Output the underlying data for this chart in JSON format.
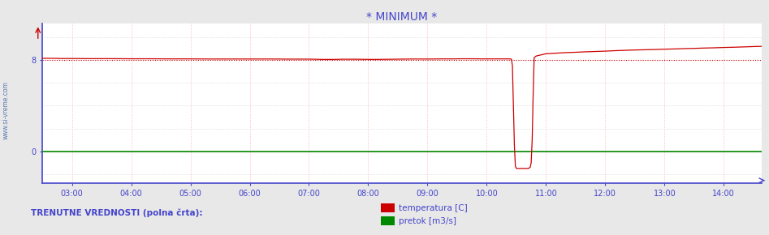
{
  "title": "* MINIMUM *",
  "title_color": "#4444cc",
  "title_fontsize": 10,
  "fig_bg_color": "#e8e8e8",
  "plot_bg_color": "#ffffff",
  "xlim_minutes": [
    150,
    878
  ],
  "ylim": [
    -2.8,
    11.2
  ],
  "yticks": [
    0,
    8
  ],
  "xtick_labels": [
    "03:00",
    "04:00",
    "05:00",
    "06:00",
    "07:00",
    "08:00",
    "09:00",
    "10:00",
    "11:00",
    "12:00",
    "13:00",
    "14:00"
  ],
  "xtick_positions": [
    180,
    240,
    300,
    360,
    420,
    480,
    540,
    600,
    660,
    720,
    780,
    840
  ],
  "axis_color": "#4444cc",
  "grid_color_v": "#ffaaaa",
  "grid_color_h": "#ccccdd",
  "temp_color": "#cc0000",
  "flow_color": "#008800",
  "min_line_color": "#cc0000",
  "min_line_y": 8.0,
  "watermark": "www.si-vreme.com",
  "watermark_color": "#4466aa",
  "legend_text1": "temperatura [C]",
  "legend_text2": "pretok [m3/s]",
  "legend_label": "TRENUTNE VREDNOSTI (polna črta):",
  "temp_data": [
    [
      150,
      8.15
    ],
    [
      160,
      8.15
    ],
    [
      170,
      8.13
    ],
    [
      180,
      8.13
    ],
    [
      200,
      8.12
    ],
    [
      220,
      8.12
    ],
    [
      240,
      8.11
    ],
    [
      260,
      8.11
    ],
    [
      280,
      8.1
    ],
    [
      300,
      8.1
    ],
    [
      320,
      8.09
    ],
    [
      340,
      8.09
    ],
    [
      360,
      8.09
    ],
    [
      380,
      8.09
    ],
    [
      400,
      8.08
    ],
    [
      420,
      8.08
    ],
    [
      435,
      8.05
    ],
    [
      445,
      8.05
    ],
    [
      455,
      8.07
    ],
    [
      465,
      8.07
    ],
    [
      475,
      8.06
    ],
    [
      485,
      8.05
    ],
    [
      495,
      8.06
    ],
    [
      505,
      8.07
    ],
    [
      515,
      8.08
    ],
    [
      525,
      8.09
    ],
    [
      535,
      8.09
    ],
    [
      545,
      8.09
    ],
    [
      555,
      8.1
    ],
    [
      565,
      8.1
    ],
    [
      575,
      8.11
    ],
    [
      585,
      8.11
    ],
    [
      595,
      8.1
    ],
    [
      605,
      8.1
    ],
    [
      615,
      8.1
    ],
    [
      620,
      8.1
    ],
    [
      623,
      8.1
    ],
    [
      625,
      8.08
    ],
    [
      626,
      7.5
    ],
    [
      627,
      4.0
    ],
    [
      628,
      0.5
    ],
    [
      629,
      -1.3
    ],
    [
      630,
      -1.5
    ],
    [
      631,
      -1.5
    ],
    [
      632,
      -1.5
    ],
    [
      635,
      -1.5
    ],
    [
      638,
      -1.5
    ],
    [
      640,
      -1.5
    ],
    [
      642,
      -1.5
    ],
    [
      644,
      -1.4
    ],
    [
      645,
      -1.0
    ],
    [
      646,
      1.0
    ],
    [
      647,
      5.0
    ],
    [
      648,
      8.2
    ],
    [
      650,
      8.35
    ],
    [
      655,
      8.45
    ],
    [
      660,
      8.55
    ],
    [
      670,
      8.6
    ],
    [
      680,
      8.65
    ],
    [
      690,
      8.68
    ],
    [
      700,
      8.72
    ],
    [
      710,
      8.75
    ],
    [
      720,
      8.78
    ],
    [
      730,
      8.82
    ],
    [
      740,
      8.85
    ],
    [
      750,
      8.88
    ],
    [
      760,
      8.9
    ],
    [
      770,
      8.92
    ],
    [
      780,
      8.95
    ],
    [
      790,
      8.97
    ],
    [
      800,
      9.0
    ],
    [
      810,
      9.02
    ],
    [
      820,
      9.05
    ],
    [
      830,
      9.07
    ],
    [
      840,
      9.1
    ],
    [
      850,
      9.12
    ],
    [
      860,
      9.15
    ],
    [
      870,
      9.18
    ],
    [
      878,
      9.2
    ]
  ],
  "flow_data": [
    [
      150,
      0.0
    ],
    [
      878,
      0.0
    ]
  ]
}
